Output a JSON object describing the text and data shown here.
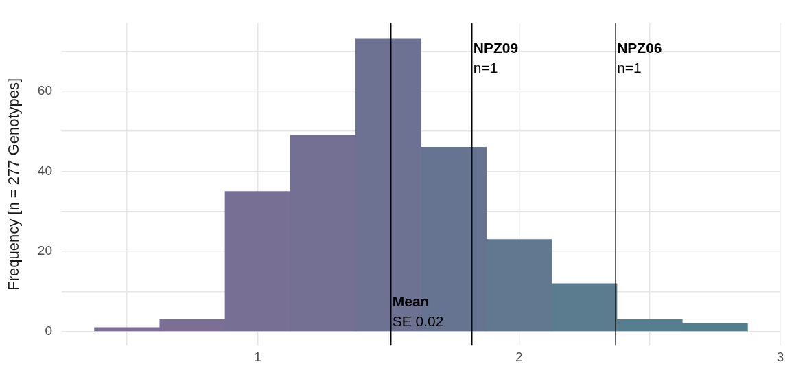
{
  "chart_data": {
    "type": "histogram",
    "ylabel": "Frequency [n = 277 Genotypes]",
    "bins": [
      0.375,
      0.625,
      0.875,
      1.125,
      1.375,
      1.625,
      1.875,
      2.125,
      2.375,
      2.625,
      2.875
    ],
    "values": [
      1,
      3,
      35,
      49,
      73,
      46,
      23,
      12,
      3,
      2
    ],
    "colors": [
      "#7d6f96",
      "#7b6f95",
      "#786f94",
      "#737093",
      "#6d7192",
      "#677491",
      "#617890",
      "#5b7b8f",
      "#567e8e",
      "#537f8d"
    ],
    "xlim": [
      0.25,
      3.0
    ],
    "xticks": [
      {
        "value": 0.5,
        "label": null
      },
      1,
      {
        "value": 1.5,
        "label": null
      },
      2,
      {
        "value": 2.5,
        "label": null
      },
      3
    ],
    "ylim": [
      -3.5,
      77
    ],
    "yticks": [
      0,
      {
        "value": 10,
        "label": null
      },
      20,
      {
        "value": 30,
        "label": null
      },
      40,
      {
        "value": 50,
        "label": null
      },
      60,
      {
        "value": 70,
        "label": null
      }
    ],
    "grid": true,
    "ref_lines": [
      {
        "axis": "x",
        "value": 1.51,
        "label": "Mean",
        "color": "#000000"
      },
      {
        "axis": "x",
        "value": 1.82,
        "label": "NPZ09",
        "color": "#000000"
      },
      {
        "axis": "x",
        "value": 2.37,
        "label": "NPZ06",
        "color": "#000000"
      }
    ],
    "annotations": [
      {
        "text": "SE 0.02",
        "x": 1.51,
        "y": 2.4
      },
      {
        "text": "n=1",
        "x": 1.82,
        "y": 65.6
      },
      {
        "text": "n=1",
        "x": 2.37,
        "y": 65.6
      }
    ]
  }
}
